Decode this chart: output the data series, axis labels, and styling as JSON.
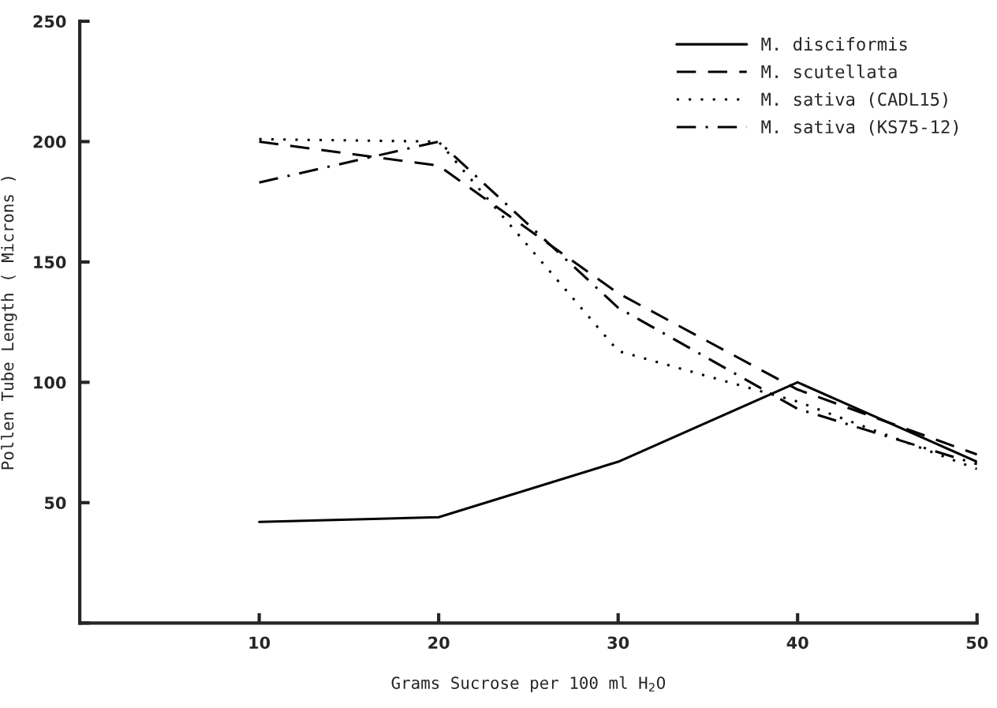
{
  "chart_data": {
    "type": "line",
    "xlabel": "Grams Sucrose per 100 ml H$_{2}$O",
    "ylabel": "Pollen Tube Length ( Microns )",
    "x": [
      10,
      20,
      30,
      40,
      50
    ],
    "series": [
      {
        "name": "M. disciformis",
        "color": "#000000",
        "line_style": "solid",
        "values": [
          42,
          44,
          67,
          100,
          67
        ]
      },
      {
        "name": "M. scutellata",
        "color": "#000000",
        "line_style": "dashed",
        "values": [
          200,
          190,
          137,
          97,
          70
        ]
      },
      {
        "name": "M. sativa (CADL15)",
        "color": "#000000",
        "line_style": "dotted",
        "values": [
          201,
          200,
          113,
          92,
          64
        ]
      },
      {
        "name": "M. sativa (KS75-12)",
        "color": "#000000",
        "line_style": "dashdot",
        "values": [
          183,
          200,
          131,
          89,
          66
        ]
      }
    ],
    "xlim": [
      0,
      50
    ],
    "xticks": [
      10,
      20,
      30,
      40,
      50
    ],
    "ylim": [
      0,
      250
    ],
    "yticks": [
      {
        "value": 0,
        "label": null
      },
      50,
      100,
      150,
      200,
      250
    ],
    "grid": false,
    "legend": "top right",
    "marker": "none"
  }
}
